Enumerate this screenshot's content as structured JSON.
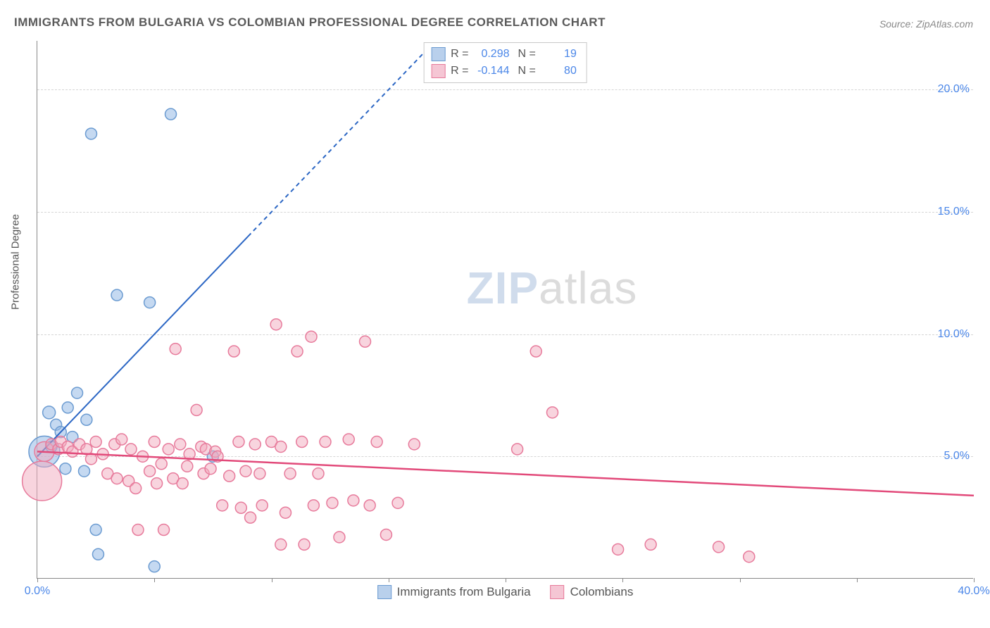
{
  "title": "IMMIGRANTS FROM BULGARIA VS COLOMBIAN PROFESSIONAL DEGREE CORRELATION CHART",
  "source_label": "Source: ZipAtlas.com",
  "ylabel": "Professional Degree",
  "watermark_a": "ZIP",
  "watermark_b": "atlas",
  "chart": {
    "type": "scatter",
    "xlim": [
      0,
      40
    ],
    "ylim": [
      0,
      22
    ],
    "x_ticks": [
      0,
      5,
      10,
      15,
      20,
      25,
      30,
      35,
      40
    ],
    "x_tick_labels": {
      "0": "0.0%",
      "40": "40.0%"
    },
    "y_ticks": [
      5,
      10,
      15,
      20
    ],
    "y_tick_labels": {
      "5": "5.0%",
      "10": "10.0%",
      "15": "15.0%",
      "20": "20.0%"
    },
    "grid_color": "#d6d6d6",
    "axis_color": "#888888",
    "background_color": "#ffffff",
    "label_color": "#4a86e8",
    "title_fontsize": 17,
    "label_fontsize": 15,
    "tick_fontsize": 16,
    "marker_radius_default": 8,
    "series": [
      {
        "name": "Immigrants from Bulgaria",
        "color_fill": "rgba(150,185,230,0.55)",
        "color_stroke": "#6b9bd1",
        "swatch_fill": "#b9d0ec",
        "swatch_stroke": "#6b9bd1",
        "R": "0.298",
        "N": "19",
        "trend": {
          "x1": 0,
          "y1": 5.0,
          "x2": 40,
          "y2": 45.0,
          "color": "#2b66c4",
          "width": 2,
          "dash_after_x": 9
        },
        "points": [
          {
            "x": 0.3,
            "y": 5.2,
            "r": 22
          },
          {
            "x": 0.5,
            "y": 6.8,
            "r": 9
          },
          {
            "x": 0.6,
            "y": 5.4,
            "r": 8
          },
          {
            "x": 0.8,
            "y": 6.3,
            "r": 8
          },
          {
            "x": 1.0,
            "y": 6.0,
            "r": 8
          },
          {
            "x": 1.2,
            "y": 4.5,
            "r": 8
          },
          {
            "x": 1.3,
            "y": 7.0,
            "r": 8
          },
          {
            "x": 1.7,
            "y": 7.6,
            "r": 8
          },
          {
            "x": 2.0,
            "y": 4.4,
            "r": 8
          },
          {
            "x": 2.3,
            "y": 18.2,
            "r": 8
          },
          {
            "x": 2.5,
            "y": 2.0,
            "r": 8
          },
          {
            "x": 2.6,
            "y": 1.0,
            "r": 8
          },
          {
            "x": 3.4,
            "y": 11.6,
            "r": 8
          },
          {
            "x": 4.8,
            "y": 11.3,
            "r": 8
          },
          {
            "x": 5.0,
            "y": 0.5,
            "r": 8
          },
          {
            "x": 5.7,
            "y": 19.0,
            "r": 8
          },
          {
            "x": 7.5,
            "y": 5.0,
            "r": 8
          },
          {
            "x": 1.5,
            "y": 5.8,
            "r": 8
          },
          {
            "x": 2.1,
            "y": 6.5,
            "r": 8
          }
        ]
      },
      {
        "name": "Colombians",
        "color_fill": "rgba(242,170,190,0.5)",
        "color_stroke": "#e77a9b",
        "swatch_fill": "#f5c6d4",
        "swatch_stroke": "#e77a9b",
        "R": "-0.144",
        "N": "80",
        "trend": {
          "x1": 0,
          "y1": 5.2,
          "x2": 40,
          "y2": 3.4,
          "color": "#e24a7a",
          "width": 2.5
        },
        "points": [
          {
            "x": 0.2,
            "y": 4.0,
            "r": 28
          },
          {
            "x": 0.3,
            "y": 5.2,
            "r": 14
          },
          {
            "x": 0.6,
            "y": 5.5,
            "r": 8
          },
          {
            "x": 0.9,
            "y": 5.3,
            "r": 8
          },
          {
            "x": 1.0,
            "y": 5.6,
            "r": 8
          },
          {
            "x": 1.3,
            "y": 5.4,
            "r": 8
          },
          {
            "x": 1.5,
            "y": 5.2,
            "r": 8
          },
          {
            "x": 1.8,
            "y": 5.5,
            "r": 8
          },
          {
            "x": 2.1,
            "y": 5.3,
            "r": 8
          },
          {
            "x": 2.3,
            "y": 4.9,
            "r": 8
          },
          {
            "x": 2.5,
            "y": 5.6,
            "r": 8
          },
          {
            "x": 2.8,
            "y": 5.1,
            "r": 8
          },
          {
            "x": 3.0,
            "y": 4.3,
            "r": 8
          },
          {
            "x": 3.3,
            "y": 5.5,
            "r": 8
          },
          {
            "x": 3.4,
            "y": 4.1,
            "r": 8
          },
          {
            "x": 3.6,
            "y": 5.7,
            "r": 8
          },
          {
            "x": 3.9,
            "y": 4.0,
            "r": 8
          },
          {
            "x": 4.0,
            "y": 5.3,
            "r": 8
          },
          {
            "x": 4.2,
            "y": 3.7,
            "r": 8
          },
          {
            "x": 4.3,
            "y": 2.0,
            "r": 8
          },
          {
            "x": 4.5,
            "y": 5.0,
            "r": 8
          },
          {
            "x": 4.8,
            "y": 4.4,
            "r": 8
          },
          {
            "x": 5.0,
            "y": 5.6,
            "r": 8
          },
          {
            "x": 5.1,
            "y": 3.9,
            "r": 8
          },
          {
            "x": 5.3,
            "y": 4.7,
            "r": 8
          },
          {
            "x": 5.4,
            "y": 2.0,
            "r": 8
          },
          {
            "x": 5.6,
            "y": 5.3,
            "r": 8
          },
          {
            "x": 5.8,
            "y": 4.1,
            "r": 8
          },
          {
            "x": 5.9,
            "y": 9.4,
            "r": 8
          },
          {
            "x": 6.1,
            "y": 5.5,
            "r": 8
          },
          {
            "x": 6.2,
            "y": 3.9,
            "r": 8
          },
          {
            "x": 6.4,
            "y": 4.6,
            "r": 8
          },
          {
            "x": 6.5,
            "y": 5.1,
            "r": 8
          },
          {
            "x": 6.8,
            "y": 6.9,
            "r": 8
          },
          {
            "x": 7.0,
            "y": 5.4,
            "r": 8
          },
          {
            "x": 7.1,
            "y": 4.3,
            "r": 8
          },
          {
            "x": 7.2,
            "y": 5.3,
            "r": 8
          },
          {
            "x": 7.4,
            "y": 4.5,
            "r": 8
          },
          {
            "x": 7.6,
            "y": 5.2,
            "r": 8
          },
          {
            "x": 7.7,
            "y": 5.0,
            "r": 8
          },
          {
            "x": 7.9,
            "y": 3.0,
            "r": 8
          },
          {
            "x": 8.2,
            "y": 4.2,
            "r": 8
          },
          {
            "x": 8.4,
            "y": 9.3,
            "r": 8
          },
          {
            "x": 8.6,
            "y": 5.6,
            "r": 8
          },
          {
            "x": 8.7,
            "y": 2.9,
            "r": 8
          },
          {
            "x": 8.9,
            "y": 4.4,
            "r": 8
          },
          {
            "x": 9.1,
            "y": 2.5,
            "r": 8
          },
          {
            "x": 9.3,
            "y": 5.5,
            "r": 8
          },
          {
            "x": 9.5,
            "y": 4.3,
            "r": 8
          },
          {
            "x": 9.6,
            "y": 3.0,
            "r": 8
          },
          {
            "x": 10.0,
            "y": 5.6,
            "r": 8
          },
          {
            "x": 10.2,
            "y": 10.4,
            "r": 8
          },
          {
            "x": 10.4,
            "y": 5.4,
            "r": 8
          },
          {
            "x": 10.6,
            "y": 2.7,
            "r": 8
          },
          {
            "x": 10.8,
            "y": 4.3,
            "r": 8
          },
          {
            "x": 10.4,
            "y": 1.4,
            "r": 8
          },
          {
            "x": 11.1,
            "y": 9.3,
            "r": 8
          },
          {
            "x": 11.3,
            "y": 5.6,
            "r": 8
          },
          {
            "x": 11.4,
            "y": 1.4,
            "r": 8
          },
          {
            "x": 11.7,
            "y": 9.9,
            "r": 8
          },
          {
            "x": 11.8,
            "y": 3.0,
            "r": 8
          },
          {
            "x": 12.3,
            "y": 5.6,
            "r": 8
          },
          {
            "x": 12.6,
            "y": 3.1,
            "r": 8
          },
          {
            "x": 12.9,
            "y": 1.7,
            "r": 8
          },
          {
            "x": 13.3,
            "y": 5.7,
            "r": 8
          },
          {
            "x": 13.5,
            "y": 3.2,
            "r": 8
          },
          {
            "x": 14.0,
            "y": 9.7,
            "r": 8
          },
          {
            "x": 14.2,
            "y": 3.0,
            "r": 8
          },
          {
            "x": 14.5,
            "y": 5.6,
            "r": 8
          },
          {
            "x": 14.9,
            "y": 1.8,
            "r": 8
          },
          {
            "x": 15.4,
            "y": 3.1,
            "r": 8
          },
          {
            "x": 16.1,
            "y": 5.5,
            "r": 8
          },
          {
            "x": 20.5,
            "y": 5.3,
            "r": 8
          },
          {
            "x": 21.3,
            "y": 9.3,
            "r": 8
          },
          {
            "x": 22.0,
            "y": 6.8,
            "r": 8
          },
          {
            "x": 24.8,
            "y": 1.2,
            "r": 8
          },
          {
            "x": 26.2,
            "y": 1.4,
            "r": 8
          },
          {
            "x": 29.1,
            "y": 1.3,
            "r": 8
          },
          {
            "x": 30.4,
            "y": 0.9,
            "r": 8
          },
          {
            "x": 12.0,
            "y": 4.3,
            "r": 8
          }
        ]
      }
    ]
  },
  "legend_labels": {
    "r": "R =",
    "n": "N ="
  }
}
